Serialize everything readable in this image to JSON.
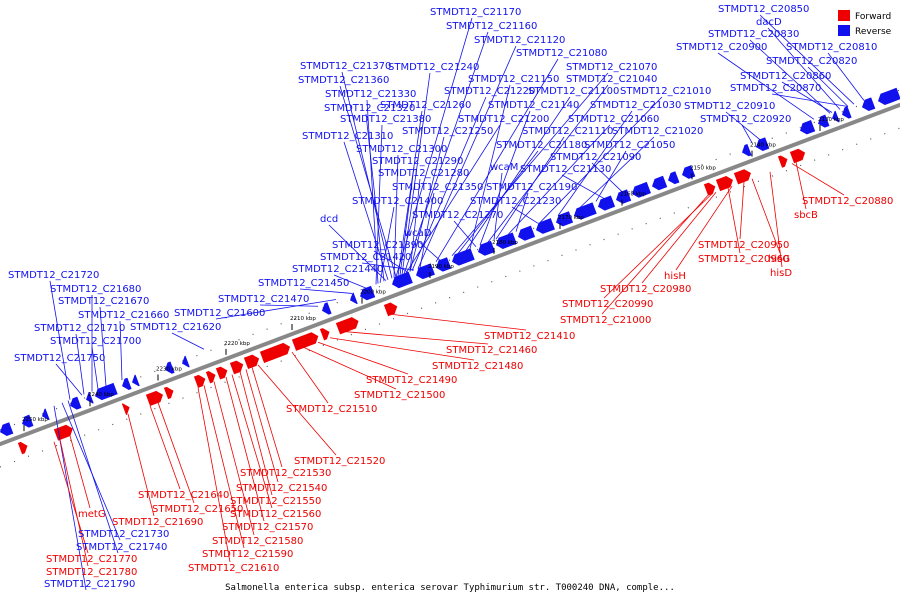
{
  "legend": [
    {
      "label": "Forward",
      "color": "#ee0000"
    },
    {
      "label": "Reverse",
      "color": "#1111ee"
    }
  ],
  "caption": "Salmonella enterica subsp. enterica serovar Typhimurium str. T000240 DNA, comple...",
  "ticks": [
    "2130 kbp",
    "2140 kbp",
    "2150 kbp",
    "2160 kbp",
    "2170 kbp",
    "2180 kbp",
    "2190 kbp",
    "2200 kbp",
    "2210 kbp",
    "2220 kbp",
    "2230 kbp",
    "2240 kbp",
    "2250 kbp"
  ],
  "reverse_labels": [
    "STMDT12_C21170",
    "STMDT12_C21160",
    "STMDT12_C21120",
    "STMDT12_C21080",
    "STMDT12_C21070",
    "STMDT12_C21240",
    "STMDT12_C21150",
    "STMDT12_C21040",
    "STMDT12_C21220",
    "STMDT12_C21100",
    "STMDT12_C21010",
    "STMDT12_C21260",
    "STMDT12_C21140",
    "STMDT12_C21030",
    "STMDT12_C21200",
    "STMDT12_C21060",
    "STMDT12_C21250",
    "STMDT12_C21110",
    "STMDT12_C21020",
    "STMDT12_C21180",
    "STMDT12_C21050",
    "STMDT12_C21090",
    "STMDT12_C21130",
    "wcaM",
    "STMDT12_C21190",
    "STMDT12_C21230",
    "STMDT12_C21270",
    "STMDT12_C21370",
    "STMDT12_C21360",
    "STMDT12_C21330",
    "STMDT12_C21320",
    "STMDT12_C21380",
    "STMDT12_C21310",
    "STMDT12_C21300",
    "STMDT12_C21290",
    "STMDT12_C21280",
    "STMDT12_C21350",
    "STMDT12_C21400",
    "dcd",
    "wcaD",
    "STMDT12_C21390",
    "STMDT12_C21420",
    "STMDT12_C21440",
    "STMDT12_C21450",
    "STMDT12_C21470",
    "STMDT12_C21600",
    "STMDT12_C21620",
    "STMDT12_C21720",
    "STMDT12_C21680",
    "STMDT12_C21670",
    "STMDT12_C21660",
    "STMDT12_C21710",
    "STMDT12_C21700",
    "STMDT12_C21750",
    "STMDT12_C20850",
    "dacD",
    "STMDT12_C20830",
    "STMDT12_C20900",
    "STMDT12_C20810",
    "STMDT12_C20820",
    "STMDT12_C20860",
    "STMDT12_C20870",
    "STMDT12_C20910",
    "STMDT12_C20920",
    "STMDT12_C21730",
    "STMDT12_C21740",
    "STMDT12_C21790"
  ],
  "forward_labels": [
    "STMDT12_C20880",
    "sbcB",
    "STMDT12_C20950",
    "STMDT12_C20960",
    "hisG",
    "hisD",
    "hisH",
    "STMDT12_C20980",
    "STMDT12_C20990",
    "STMDT12_C21000",
    "STMDT12_C21410",
    "STMDT12_C21460",
    "STMDT12_C21480",
    "STMDT12_C21490",
    "STMDT12_C21500",
    "STMDT12_C21510",
    "STMDT12_C21520",
    "STMDT12_C21530",
    "STMDT12_C21540",
    "STMDT12_C21550",
    "STMDT12_C21560",
    "STMDT12_C21570",
    "STMDT12_C21580",
    "STMDT12_C21590",
    "STMDT12_C21610",
    "STMDT12_C21640",
    "STMDT12_C21650",
    "STMDT12_C21690",
    "metG",
    "STMDT12_C21770",
    "STMDT12_C21780"
  ]
}
